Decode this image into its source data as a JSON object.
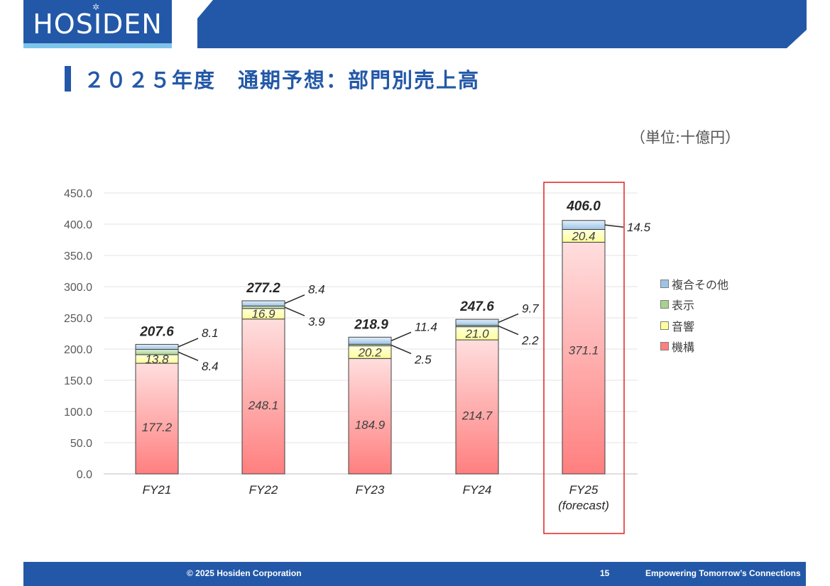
{
  "brand": {
    "logo_text": "HOSIDEN",
    "color": "#2358a8"
  },
  "slide": {
    "title": "２０２５年度　通期予想：部門別売上高",
    "unit": "（単位:十億円）"
  },
  "footer": {
    "copyright": "© 2025 Hosiden Corporation",
    "page_number": "15",
    "tagline": "Empowering Tomorrow’s Connections"
  },
  "chart_data": {
    "type": "bar",
    "stacked": true,
    "categories": [
      "FY21",
      "FY22",
      "FY23",
      "FY24",
      "FY25\n(forecast)"
    ],
    "series": [
      {
        "name": "機構",
        "values": [
          177.2,
          248.1,
          184.9,
          214.7,
          371.1
        ],
        "color": "#ff7f7f"
      },
      {
        "name": "音響",
        "values": [
          13.8,
          16.9,
          20.2,
          21.0,
          20.4
        ],
        "color": "#ffff99"
      },
      {
        "name": "表示",
        "values": [
          8.4,
          3.9,
          2.5,
          2.2,
          0.0
        ],
        "color": "#a9d18e"
      },
      {
        "name": "複合その他",
        "values": [
          8.1,
          8.4,
          11.4,
          9.7,
          14.5
        ],
        "color": "#9dc3e6"
      }
    ],
    "totals": [
      207.6,
      277.2,
      218.9,
      247.6,
      406.0
    ],
    "ylim": [
      0,
      450
    ],
    "yticks": [
      "0.0",
      "50.0",
      "100.0",
      "150.0",
      "200.0",
      "250.0",
      "300.0",
      "350.0",
      "400.0",
      "450.0"
    ],
    "grid": true,
    "legend_position": "right",
    "highlight_category": "FY25\n(forecast)",
    "highlight_color": "#e02020"
  }
}
